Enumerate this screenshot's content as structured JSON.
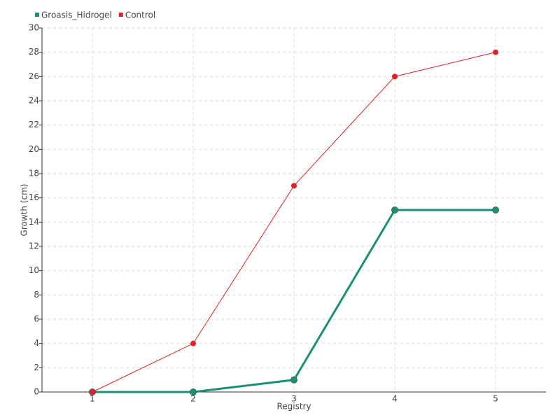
{
  "chart_data": {
    "type": "line",
    "x_label": "Registry",
    "y_label": "Growth (cm)",
    "categories": [
      "1",
      "2",
      "3",
      "4",
      "5"
    ],
    "series": [
      {
        "name": "Groasis_Hidrogel",
        "color": "#1c8f74",
        "values": [
          0,
          0,
          1,
          15,
          15
        ]
      },
      {
        "name": "Control",
        "color": "#e0202a",
        "values": [
          0,
          4,
          17,
          26,
          28
        ]
      }
    ],
    "ylim": [
      0,
      30
    ],
    "yticks": [
      0,
      2,
      4,
      6,
      8,
      10,
      12,
      14,
      16,
      18,
      20,
      22,
      24,
      26,
      28,
      30
    ],
    "grid": true,
    "legend": "top-left"
  }
}
